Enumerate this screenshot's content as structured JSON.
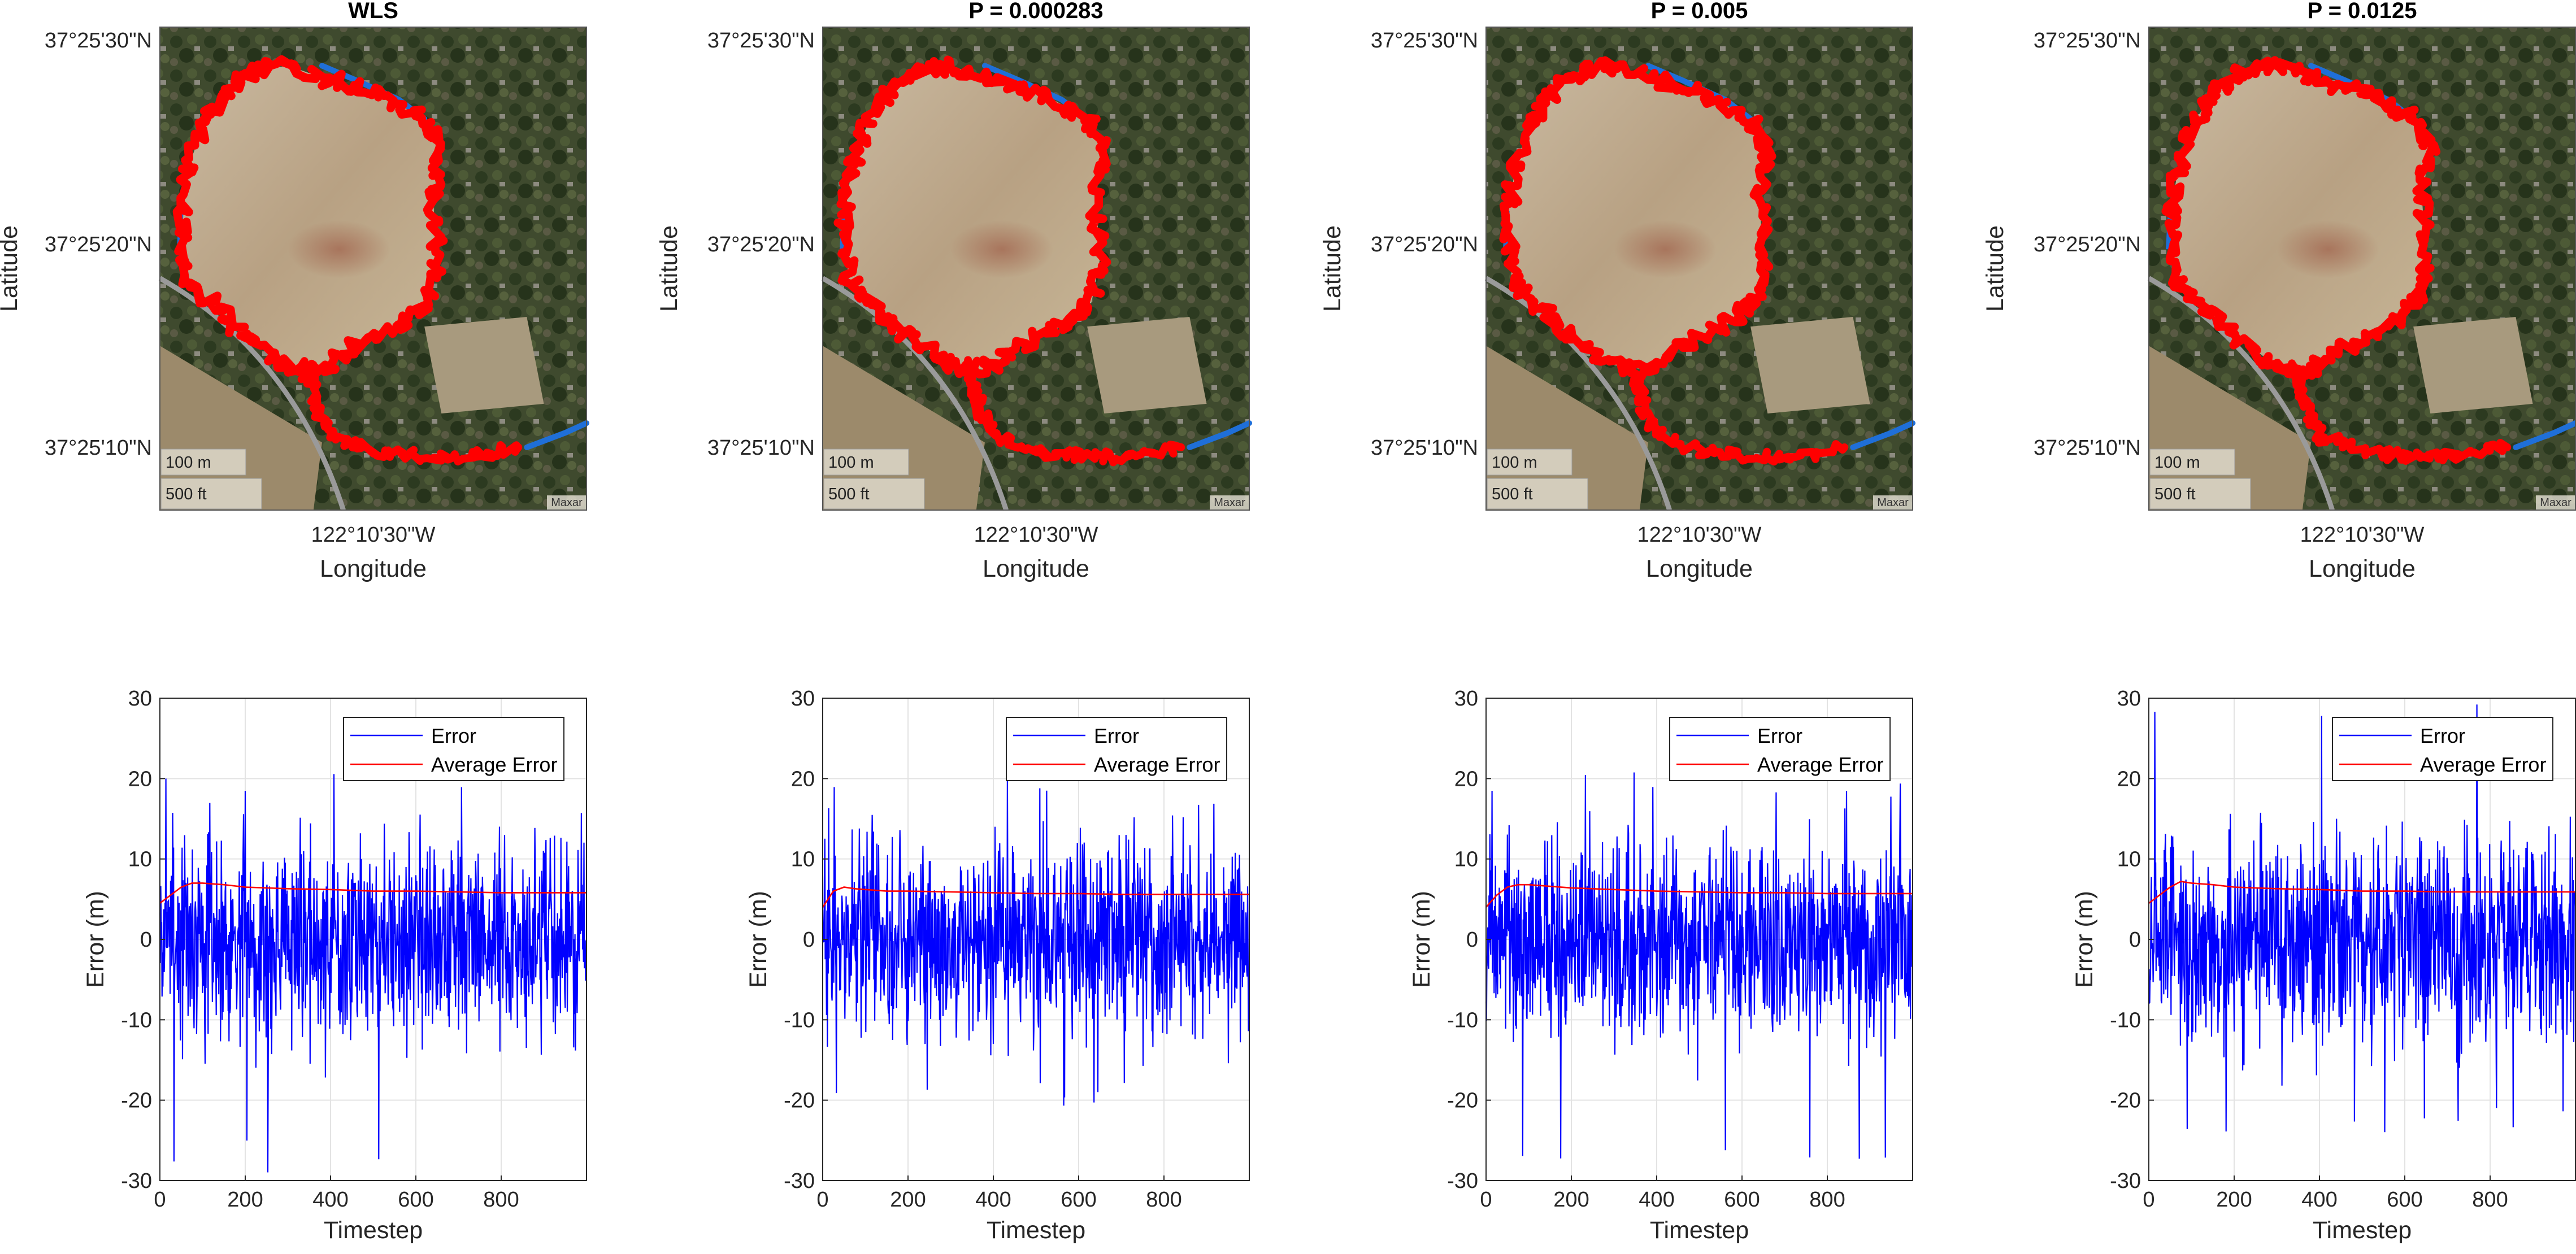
{
  "colors": {
    "error_line": "#0000ff",
    "average_line": "#ff0000",
    "track_red": "#ff0000",
    "track_blue": "#1f6fd8",
    "grid": "#e3e3e3",
    "axis": "#262626"
  },
  "map_panels": [
    {
      "title": "WLS",
      "lat_ticks": [
        "37°25'30\"N",
        "37°25'20\"N",
        "37°25'10\"N"
      ],
      "lon_tick": "122°10'30\"W",
      "xlabel": "Longitude",
      "ylabel": "Latitude",
      "scale_m": "100 m",
      "scale_ft": "500 ft",
      "credit": "Maxar"
    },
    {
      "title": "P = 0.000283",
      "lat_ticks": [
        "37°25'30\"N",
        "37°25'20\"N",
        "37°25'10\"N"
      ],
      "lon_tick": "122°10'30\"W",
      "xlabel": "Longitude",
      "ylabel": "Latitude",
      "scale_m": "100 m",
      "scale_ft": "500 ft",
      "credit": "Maxar"
    },
    {
      "title": "P = 0.005",
      "lat_ticks": [
        "37°25'30\"N",
        "37°25'20\"N",
        "37°25'10\"N"
      ],
      "lon_tick": "122°10'30\"W",
      "xlabel": "Longitude",
      "ylabel": "Latitude",
      "scale_m": "100 m",
      "scale_ft": "500 ft",
      "credit": "Maxar"
    },
    {
      "title": "P = 0.0125",
      "lat_ticks": [
        "37°25'30\"N",
        "37°25'20\"N",
        "37°25'10\"N"
      ],
      "lon_tick": "122°10'30\"W",
      "xlabel": "Longitude",
      "ylabel": "Latitude",
      "scale_m": "100 m",
      "scale_ft": "500 ft",
      "credit": "Maxar"
    }
  ],
  "chart_data": [
    {
      "type": "line",
      "xlabel": "Timestep",
      "ylabel": "Error (m)",
      "xlim": [
        0,
        1000
      ],
      "ylim": [
        -30,
        30
      ],
      "xticks": [
        0,
        200,
        400,
        600,
        800
      ],
      "yticks": [
        -30,
        -20,
        -10,
        0,
        10,
        20,
        30
      ],
      "grid": true,
      "legend": "top-right",
      "series": [
        {
          "name": "Error",
          "approx_abs_mean": 6,
          "min": -29,
          "max": 21
        },
        {
          "name": "Average Error",
          "x": [
            0,
            25,
            50,
            75,
            100,
            150,
            200,
            300,
            400,
            500,
            600,
            700,
            800,
            900,
            1000
          ],
          "values": [
            4.5,
            5.5,
            6.5,
            7.0,
            7.0,
            6.8,
            6.5,
            6.3,
            6.2,
            6.0,
            6.0,
            5.9,
            5.8,
            5.8,
            5.8
          ]
        }
      ]
    },
    {
      "type": "line",
      "xlabel": "Timestep",
      "ylabel": "Error (m)",
      "xlim": [
        0,
        1000
      ],
      "ylim": [
        -30,
        30
      ],
      "xticks": [
        0,
        200,
        400,
        600,
        800
      ],
      "yticks": [
        -30,
        -20,
        -10,
        0,
        10,
        20,
        30
      ],
      "grid": true,
      "legend": "top-right",
      "series": [
        {
          "name": "Error",
          "approx_abs_mean": 5.5,
          "min": -21,
          "max": 20
        },
        {
          "name": "Average Error",
          "x": [
            0,
            25,
            50,
            75,
            100,
            150,
            200,
            300,
            400,
            500,
            600,
            700,
            800,
            900,
            1000
          ],
          "values": [
            4.0,
            6.0,
            6.5,
            6.3,
            6.2,
            6.0,
            6.0,
            5.9,
            5.8,
            5.7,
            5.7,
            5.6,
            5.6,
            5.6,
            5.6
          ]
        }
      ]
    },
    {
      "type": "line",
      "xlabel": "Timestep",
      "ylabel": "Error (m)",
      "xlim": [
        0,
        1000
      ],
      "ylim": [
        -30,
        30
      ],
      "xticks": [
        0,
        200,
        400,
        600,
        800
      ],
      "yticks": [
        -30,
        -20,
        -10,
        0,
        10,
        20,
        30
      ],
      "grid": true,
      "legend": "top-right",
      "series": [
        {
          "name": "Error",
          "approx_abs_mean": 5.8,
          "min": -28,
          "max": 21
        },
        {
          "name": "Average Error",
          "x": [
            0,
            25,
            50,
            75,
            100,
            150,
            200,
            300,
            400,
            500,
            600,
            700,
            800,
            900,
            1000
          ],
          "values": [
            4.0,
            5.5,
            6.5,
            6.8,
            6.8,
            6.6,
            6.4,
            6.2,
            6.0,
            5.9,
            5.8,
            5.8,
            5.7,
            5.7,
            5.7
          ]
        }
      ]
    },
    {
      "type": "line",
      "xlabel": "Timestep",
      "ylabel": "Error (m)",
      "xlim": [
        0,
        1000
      ],
      "ylim": [
        -30,
        30
      ],
      "xticks": [
        0,
        200,
        400,
        600,
        800
      ],
      "yticks": [
        -30,
        -20,
        -10,
        0,
        10,
        20,
        30
      ],
      "grid": true,
      "legend": "top-right",
      "series": [
        {
          "name": "Error",
          "approx_abs_mean": 6,
          "min": -24,
          "max": 30
        },
        {
          "name": "Average Error",
          "x": [
            0,
            25,
            50,
            75,
            100,
            150,
            200,
            300,
            400,
            500,
            600,
            700,
            800,
            900,
            1000
          ],
          "values": [
            4.5,
            5.5,
            6.5,
            7.2,
            7.0,
            6.8,
            6.5,
            6.3,
            6.2,
            6.0,
            6.0,
            5.9,
            5.9,
            5.9,
            5.9
          ]
        }
      ]
    }
  ]
}
